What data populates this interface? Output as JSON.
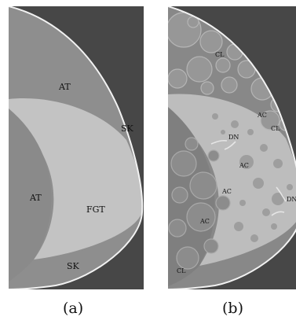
{
  "panels": [
    {
      "caption": "(a)",
      "labels": [
        "AT",
        "SK",
        "AT",
        "FGT",
        "SK"
      ]
    },
    {
      "caption": "(b)",
      "labels": [
        "CL",
        "AC",
        "CL",
        "DN",
        "AC",
        "AC",
        "DN",
        "AC",
        "CL"
      ]
    }
  ]
}
